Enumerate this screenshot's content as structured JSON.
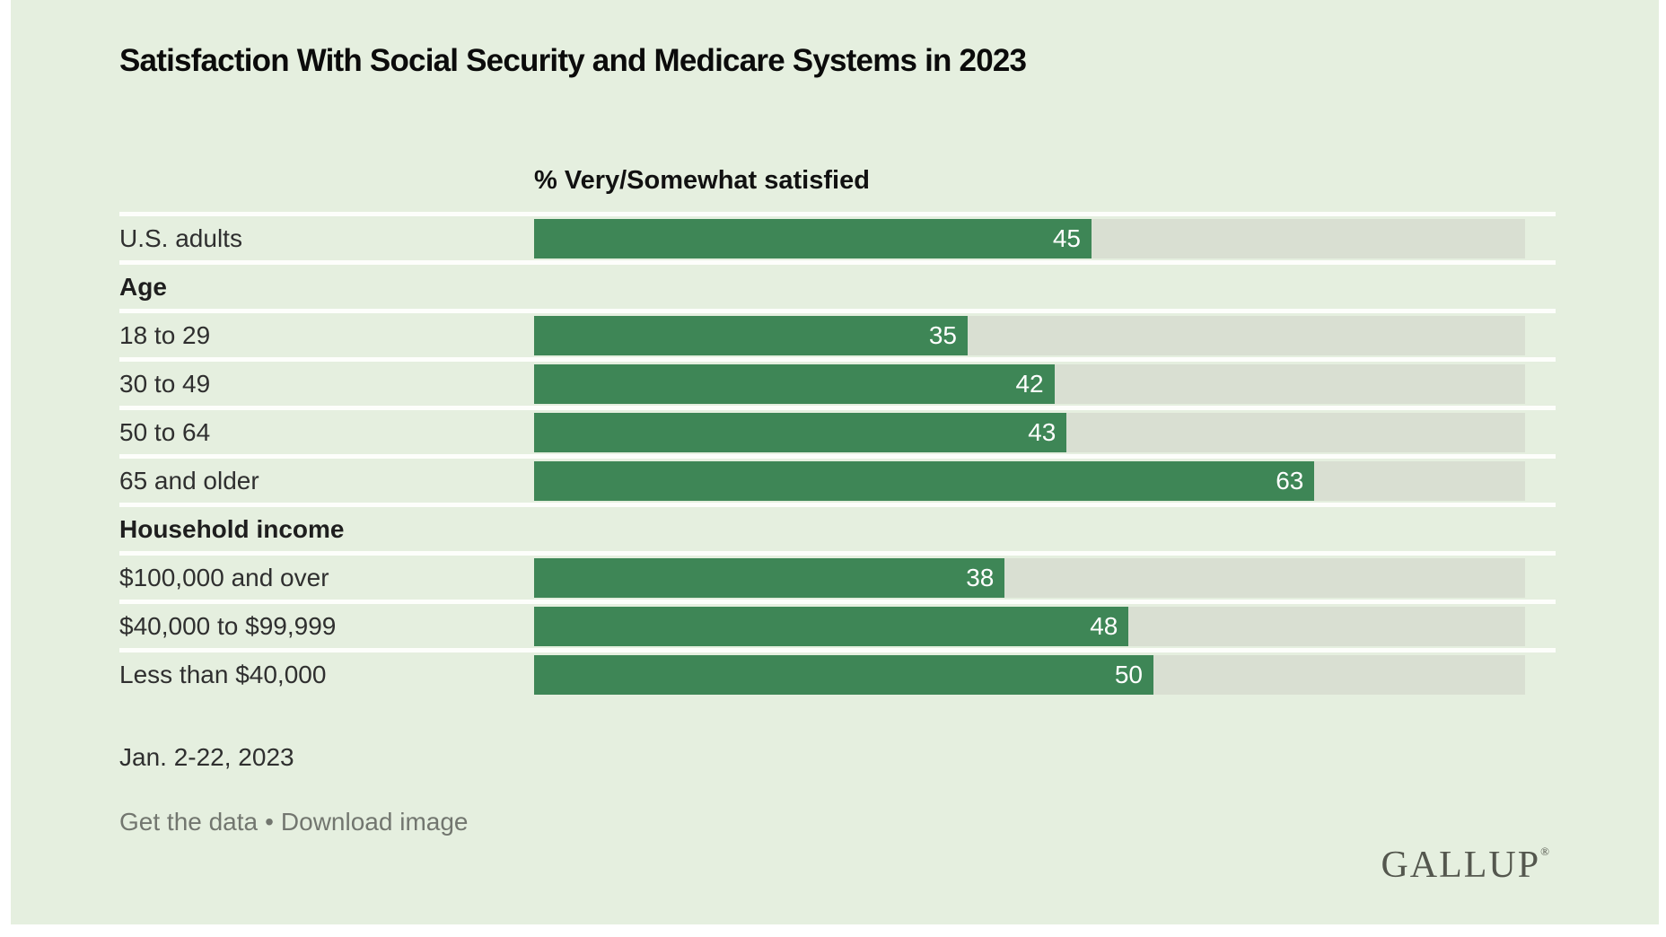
{
  "page": {
    "background": "#ffffff"
  },
  "card": {
    "background": "#e5efdf"
  },
  "header": {
    "title": "Satisfaction With Social Security and Medicare Systems in 2023"
  },
  "chart": {
    "subtitle": "% Very/Somewhat satisfied",
    "axis_max": 80,
    "bar_color": "#3e8656",
    "track_color": "#d9dfd2",
    "separator_color": "#fdfefb",
    "value_label_color": "#ffffff",
    "rows": [
      {
        "type": "data",
        "label": "U.S. adults",
        "value": 45
      },
      {
        "type": "header",
        "label": "Age"
      },
      {
        "type": "data",
        "label": "18 to 29",
        "value": 35
      },
      {
        "type": "data",
        "label": "30 to 49",
        "value": 42
      },
      {
        "type": "data",
        "label": "50 to 64",
        "value": 43
      },
      {
        "type": "data",
        "label": "65 and older",
        "value": 63
      },
      {
        "type": "header",
        "label": "Household income"
      },
      {
        "type": "data",
        "label": "$100,000 and over",
        "value": 38
      },
      {
        "type": "data",
        "label": "$40,000 to $99,999",
        "value": 48
      },
      {
        "type": "data",
        "label": "Less than $40,000",
        "value": 50
      }
    ]
  },
  "chart_data": {
    "type": "bar",
    "orientation": "horizontal",
    "title": "Satisfaction With Social Security and Medicare Systems in 2023",
    "subtitle": "% Very/Somewhat satisfied",
    "categories": [
      "U.S. adults",
      "18 to 29",
      "30 to 49",
      "50 to 64",
      "65 and older",
      "$100,000 and over",
      "$40,000 to $99,999",
      "Less than $40,000"
    ],
    "values": [
      45,
      35,
      42,
      43,
      63,
      38,
      48,
      50
    ],
    "sections": [
      {
        "name": "",
        "categories": [
          "U.S. adults"
        ],
        "values": [
          45
        ]
      },
      {
        "name": "Age",
        "categories": [
          "18 to 29",
          "30 to 49",
          "50 to 64",
          "65 and older"
        ],
        "values": [
          35,
          42,
          43,
          63
        ]
      },
      {
        "name": "Household income",
        "categories": [
          "$100,000 and over",
          "$40,000 to $99,999",
          "Less than $40,000"
        ],
        "values": [
          38,
          48,
          50
        ]
      }
    ],
    "xlabel": "",
    "ylabel": "",
    "xlim": [
      0,
      80
    ],
    "data_labels": true,
    "grid": false,
    "legend": false
  },
  "footer": {
    "date_note": "Jan. 2-22, 2023",
    "links": {
      "get_data": "Get the data",
      "separator": "•",
      "download": "Download image"
    },
    "logo": "GALLUP",
    "logo_mark": "®"
  }
}
